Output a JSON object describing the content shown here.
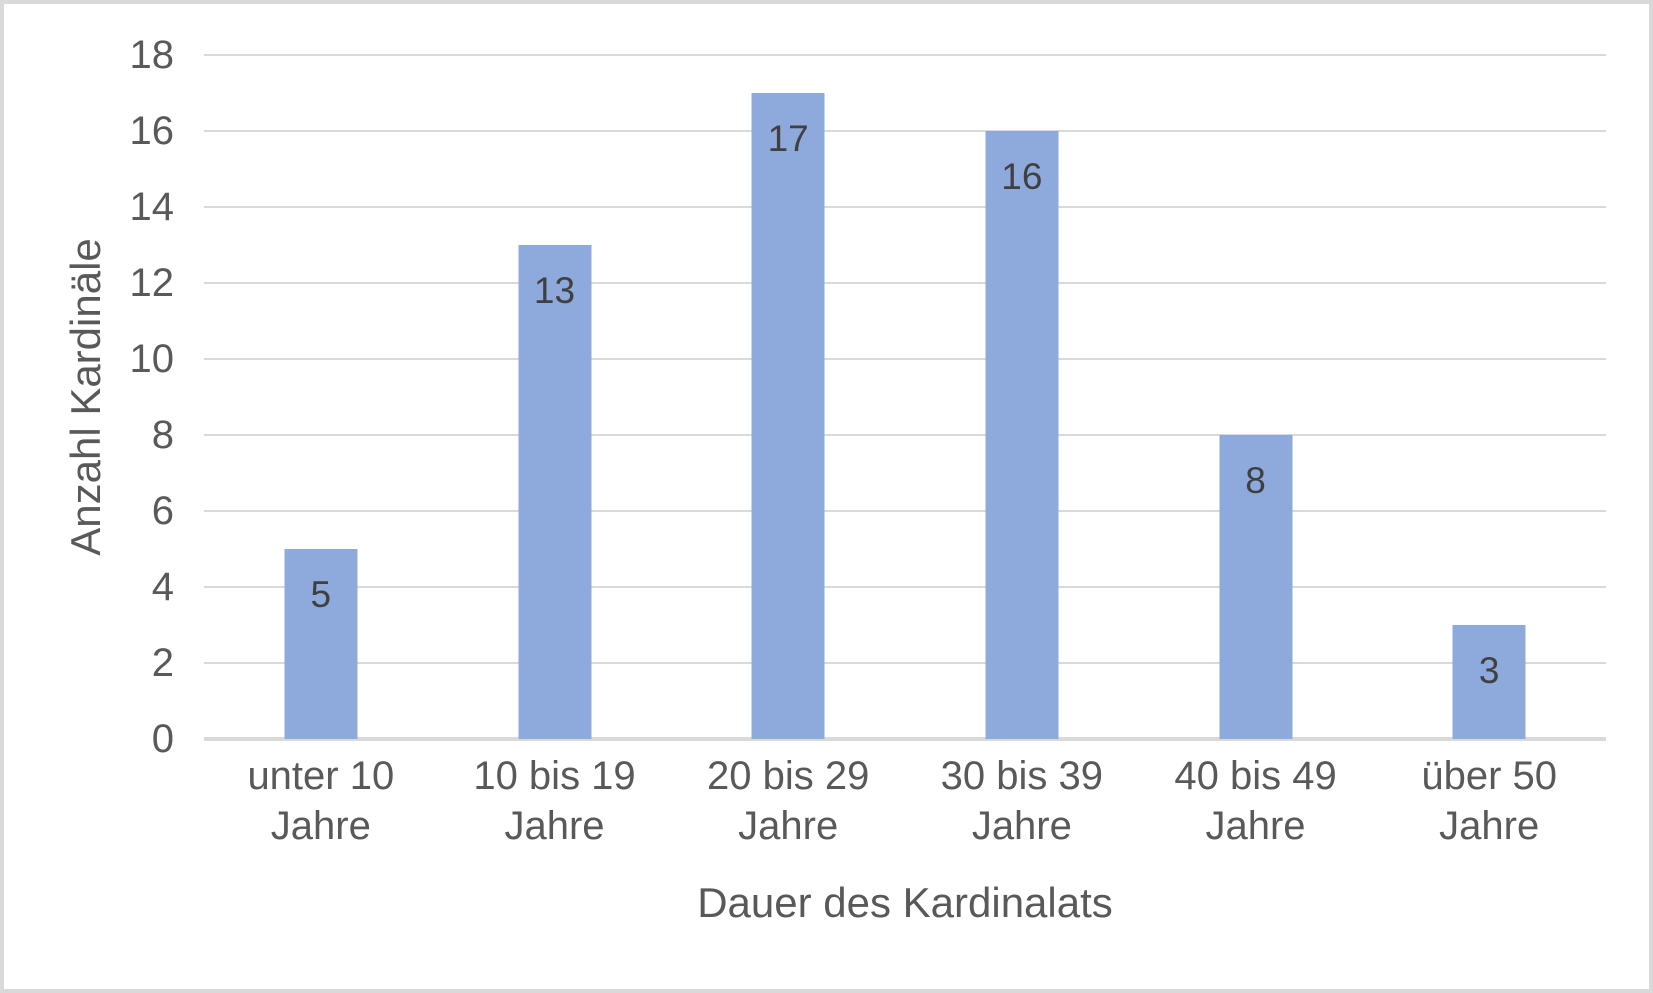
{
  "chart_data": {
    "type": "bar",
    "title": "",
    "categories": [
      "unter 10 Jahre",
      "10 bis 19 Jahre",
      "20 bis 29 Jahre",
      "30 bis 39 Jahre",
      "40 bis 49 Jahre",
      "über 50 Jahre"
    ],
    "categories_lines": [
      [
        "unter 10",
        "Jahre"
      ],
      [
        "10 bis 19",
        "Jahre"
      ],
      [
        "20 bis 29",
        "Jahre"
      ],
      [
        "30 bis 39",
        "Jahre"
      ],
      [
        "40 bis 49",
        "Jahre"
      ],
      [
        "über 50 Jahre"
      ]
    ],
    "values": [
      5,
      13,
      17,
      16,
      8,
      3
    ],
    "data_labels": [
      "5",
      "13",
      "17",
      "16",
      "8",
      "3"
    ],
    "data_label_position": "inside-end",
    "xlabel": "Dauer des Kardinalats",
    "ylabel": "Anzahl Kardinäle",
    "ylim": [
      0,
      18
    ],
    "ytick_step": 2,
    "yticks": [
      0,
      2,
      4,
      6,
      8,
      10,
      12,
      14,
      16,
      18
    ],
    "grid": "horizontal",
    "legend": "none",
    "colors": {
      "bar_fill": "#8EA9DB",
      "gridline": "#D9D9D9",
      "axis_line": "#D9D9D9",
      "tick_text": "#595959",
      "axis_title_text": "#595959",
      "data_label_text": "#404040",
      "frame_border": "#D9D9D9",
      "background": "#FFFFFF"
    }
  }
}
